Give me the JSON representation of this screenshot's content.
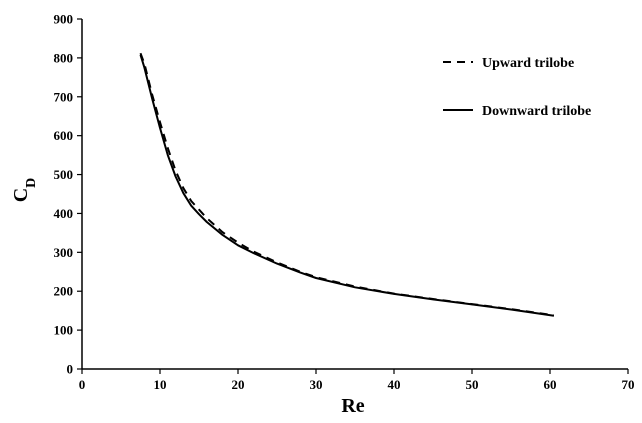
{
  "chart_data": {
    "type": "line",
    "title": "",
    "xlabel": "Re",
    "ylabel": "C",
    "ylabel_subscript": "D",
    "xlim": [
      0,
      70
    ],
    "ylim": [
      0,
      900
    ],
    "x_ticks": [
      0,
      10,
      20,
      30,
      40,
      50,
      60,
      70
    ],
    "y_ticks": [
      0,
      100,
      200,
      300,
      400,
      500,
      600,
      700,
      800,
      900
    ],
    "grid": false,
    "legend_position": "top-right",
    "series": [
      {
        "name": "Upward trilobe",
        "line_style": "dashed",
        "color": "#000000",
        "x": [
          7.5,
          8,
          9,
          10,
          11,
          12,
          13,
          14,
          15,
          16,
          18,
          20,
          22,
          25,
          28,
          30,
          35,
          40,
          45,
          50,
          55,
          60.5
        ],
        "y": [
          812,
          785,
          705,
          635,
          568,
          510,
          465,
          432,
          410,
          388,
          352,
          325,
          302,
          274,
          250,
          236,
          212,
          194,
          180,
          167,
          154,
          138
        ]
      },
      {
        "name": "Downward trilobe",
        "line_style": "solid",
        "color": "#000000",
        "x": [
          7.5,
          8,
          9,
          10,
          11,
          12,
          13,
          14,
          15,
          16,
          18,
          20,
          22,
          25,
          28,
          30,
          35,
          40,
          45,
          50,
          55,
          60.5
        ],
        "y": [
          808,
          775,
          695,
          620,
          550,
          495,
          452,
          420,
          398,
          378,
          345,
          318,
          298,
          271,
          248,
          234,
          210,
          193,
          179,
          166,
          153,
          137
        ]
      }
    ]
  }
}
